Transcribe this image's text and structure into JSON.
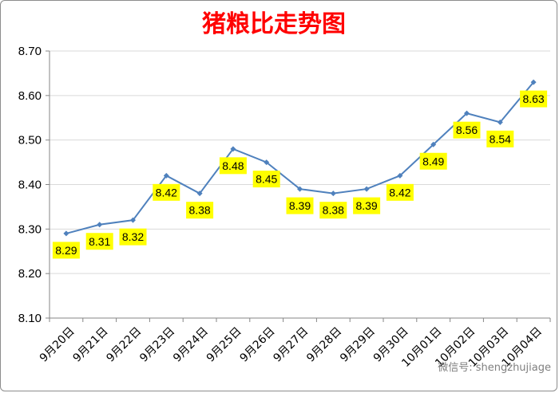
{
  "chart_data": {
    "type": "line",
    "title": "猪粮比走势图",
    "categories": [
      "9月20日",
      "9月21日",
      "9月22日",
      "9月23日",
      "9月24日",
      "9月25日",
      "9月26日",
      "9月27日",
      "9月28日",
      "9月29日",
      "9月30日",
      "10月01日",
      "10月02日",
      "10月03日",
      "10月04日"
    ],
    "values": [
      8.29,
      8.31,
      8.32,
      8.42,
      8.38,
      8.48,
      8.45,
      8.39,
      8.38,
      8.39,
      8.42,
      8.49,
      8.56,
      8.54,
      8.63
    ],
    "data_labels": [
      "8.29",
      "8.31",
      "8.32",
      "8.42",
      "8.38",
      "8.48",
      "8.45",
      "8.39",
      "8.38",
      "8.39",
      "8.42",
      "8.49",
      "8.56",
      "8.54",
      "8.63"
    ],
    "ylim": [
      8.1,
      8.7
    ],
    "yticks": [
      "8.10",
      "8.20",
      "8.30",
      "8.40",
      "8.50",
      "8.60",
      "8.70"
    ],
    "grid": true,
    "legend": "none",
    "xlabel": "",
    "ylabel": "",
    "colors": {
      "line": "#4f81bd",
      "marker": "#4f81bd",
      "label_bg": "#ffff00",
      "title": "#ff0000",
      "grid": "#d9d9d9"
    }
  },
  "watermark": "微信号: shengzhujiage"
}
